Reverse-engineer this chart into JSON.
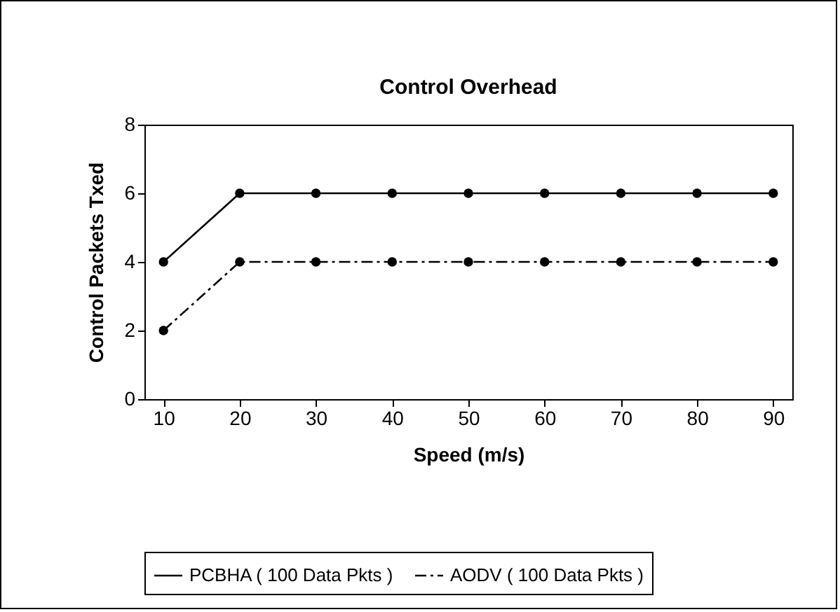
{
  "chart_data": {
    "type": "line",
    "title": "Control Overhead",
    "xlabel": "Speed (m/s)",
    "ylabel": "Control Packets Txed",
    "categories": [
      "10",
      "20",
      "30",
      "40",
      "50",
      "60",
      "70",
      "80",
      "90"
    ],
    "series": [
      {
        "name": "PCBHA ( 100 Data Pkts )",
        "color": "#000000",
        "line_style": "solid",
        "values": [
          4,
          6,
          6,
          6,
          6,
          6,
          6,
          6,
          6
        ]
      },
      {
        "name": "AODV ( 100 Data Pkts )",
        "color": "#000000",
        "line_style": "dashed",
        "values": [
          2,
          4,
          4,
          4,
          4,
          4,
          4,
          4,
          4
        ]
      }
    ],
    "ylim": [
      0,
      8
    ],
    "yticks": [
      0,
      2,
      4,
      6,
      8
    ],
    "grid": false,
    "legend": "bottom",
    "marker": "circle"
  }
}
